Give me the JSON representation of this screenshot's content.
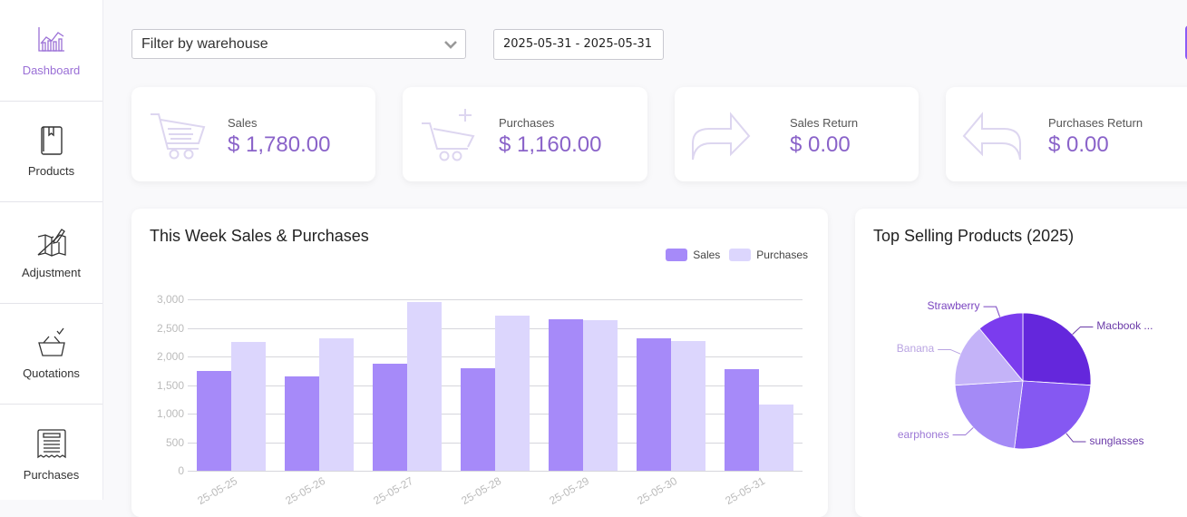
{
  "sidebar": {
    "items": [
      {
        "label": "Dashboard",
        "icon": "chart-icon",
        "active": true
      },
      {
        "label": "Products",
        "icon": "book-icon",
        "active": false
      },
      {
        "label": "Adjustment",
        "icon": "map-edit-icon",
        "active": false
      },
      {
        "label": "Quotations",
        "icon": "basket-check-icon",
        "active": false
      },
      {
        "label": "Purchases",
        "icon": "receipt-icon",
        "active": false
      }
    ]
  },
  "filters": {
    "warehouse_placeholder": "Filter by warehouse",
    "date_range": "2025-05-31 - 2025-05-31"
  },
  "kpis": [
    {
      "label": "Sales",
      "value": "$ 1,780.00",
      "icon": "cart-icon"
    },
    {
      "label": "Purchases",
      "value": "$ 1,160.00",
      "icon": "cart-plus-icon"
    },
    {
      "label": "Sales Return",
      "value": "$ 0.00",
      "icon": "arrow-forward-icon"
    },
    {
      "label": "Purchases Return",
      "value": "$ 0.00",
      "icon": "arrow-back-icon"
    }
  ],
  "weekly_chart": {
    "title": "This Week Sales & Purchases",
    "legend": [
      "Sales",
      "Purchases"
    ]
  },
  "top_products": {
    "title": "Top Selling Products (2025)"
  },
  "colors": {
    "accent": "#9a6fd6",
    "sales_bar": "#a68af9",
    "purchases_bar": "#dcd6fd",
    "kpi_value": "#8a63c9"
  },
  "chart_data": [
    {
      "type": "bar",
      "title": "This Week Sales & Purchases",
      "categories": [
        "2025-05-25",
        "2025-05-26",
        "2025-05-27",
        "2025-05-28",
        "2025-05-29",
        "2025-05-30",
        "2025-05-31"
      ],
      "tick_labels": [
        "25-05-25",
        "25-05-26",
        "25-05-27",
        "25-05-28",
        "25-05-29",
        "25-05-30",
        "25-05-31"
      ],
      "series": [
        {
          "name": "Sales",
          "color": "#a68af9",
          "values": [
            1740,
            1650,
            1880,
            1800,
            2650,
            2320,
            1780
          ]
        },
        {
          "name": "Purchases",
          "color": "#dcd6fd",
          "values": [
            2250,
            2310,
            2960,
            2720,
            2640,
            2270,
            1160
          ]
        }
      ],
      "yticks": [
        "0",
        "500",
        "1,000",
        "1,500",
        "2,000",
        "2,500",
        "3,000"
      ],
      "ylim": [
        0,
        3000
      ],
      "grid": true,
      "legend_position": "top-right",
      "xlabel": "",
      "ylabel": ""
    },
    {
      "type": "pie",
      "title": "Top Selling Products (2025)",
      "categories": [
        "Macbook ...",
        "sunglasses",
        "earphones",
        "Banana",
        "Strawberry"
      ],
      "values": [
        26,
        26,
        22,
        15,
        11
      ],
      "colors": [
        "#6427dc",
        "#8558f2",
        "#a48af6",
        "#c4b3f8",
        "#7b3cee"
      ],
      "label_colors": [
        "#6a3aa8",
        "#6a3aa8",
        "#9c78d6",
        "#b9a4e2",
        "#7a45c0"
      ]
    }
  ]
}
